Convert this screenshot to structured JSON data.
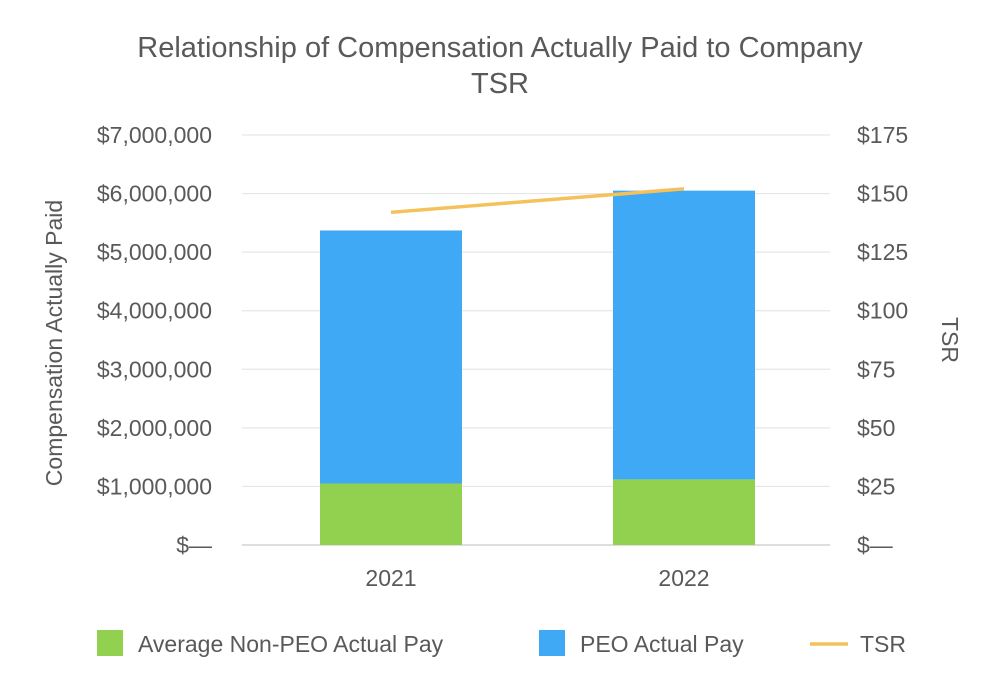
{
  "chart_data": {
    "type": "bar",
    "stacked": true,
    "title_lines": [
      "Relationship of Compensation Actually Paid to Company",
      "TSR"
    ],
    "categories": [
      "2021",
      "2022"
    ],
    "series": [
      {
        "name": "Average Non-PEO Actual Pay",
        "type": "bar",
        "axis": "left",
        "color": "#92D050",
        "values": [
          1050000,
          1120000
        ]
      },
      {
        "name": "PEO Actual Pay",
        "type": "bar",
        "axis": "left",
        "color": "#3FA9F5",
        "values": [
          4320000,
          4930000
        ]
      },
      {
        "name": "TSR",
        "type": "line",
        "axis": "right",
        "color": "#F4C15B",
        "values": [
          142,
          152
        ]
      }
    ],
    "y_left": {
      "label": "Compensation Actually Paid",
      "ylim": [
        0,
        7000000
      ],
      "tick_labels": [
        "$—",
        "$1,000,000",
        "$2,000,000",
        "$3,000,000",
        "$4,000,000",
        "$5,000,000",
        "$6,000,000",
        "$7,000,000"
      ]
    },
    "y_right": {
      "label": "TSR",
      "ylim": [
        0,
        175
      ],
      "tick_labels": [
        "$—",
        "$25",
        "$50",
        "$75",
        "$100",
        "$125",
        "$150",
        "$175"
      ]
    },
    "grid": true,
    "legend_position": "bottom"
  }
}
